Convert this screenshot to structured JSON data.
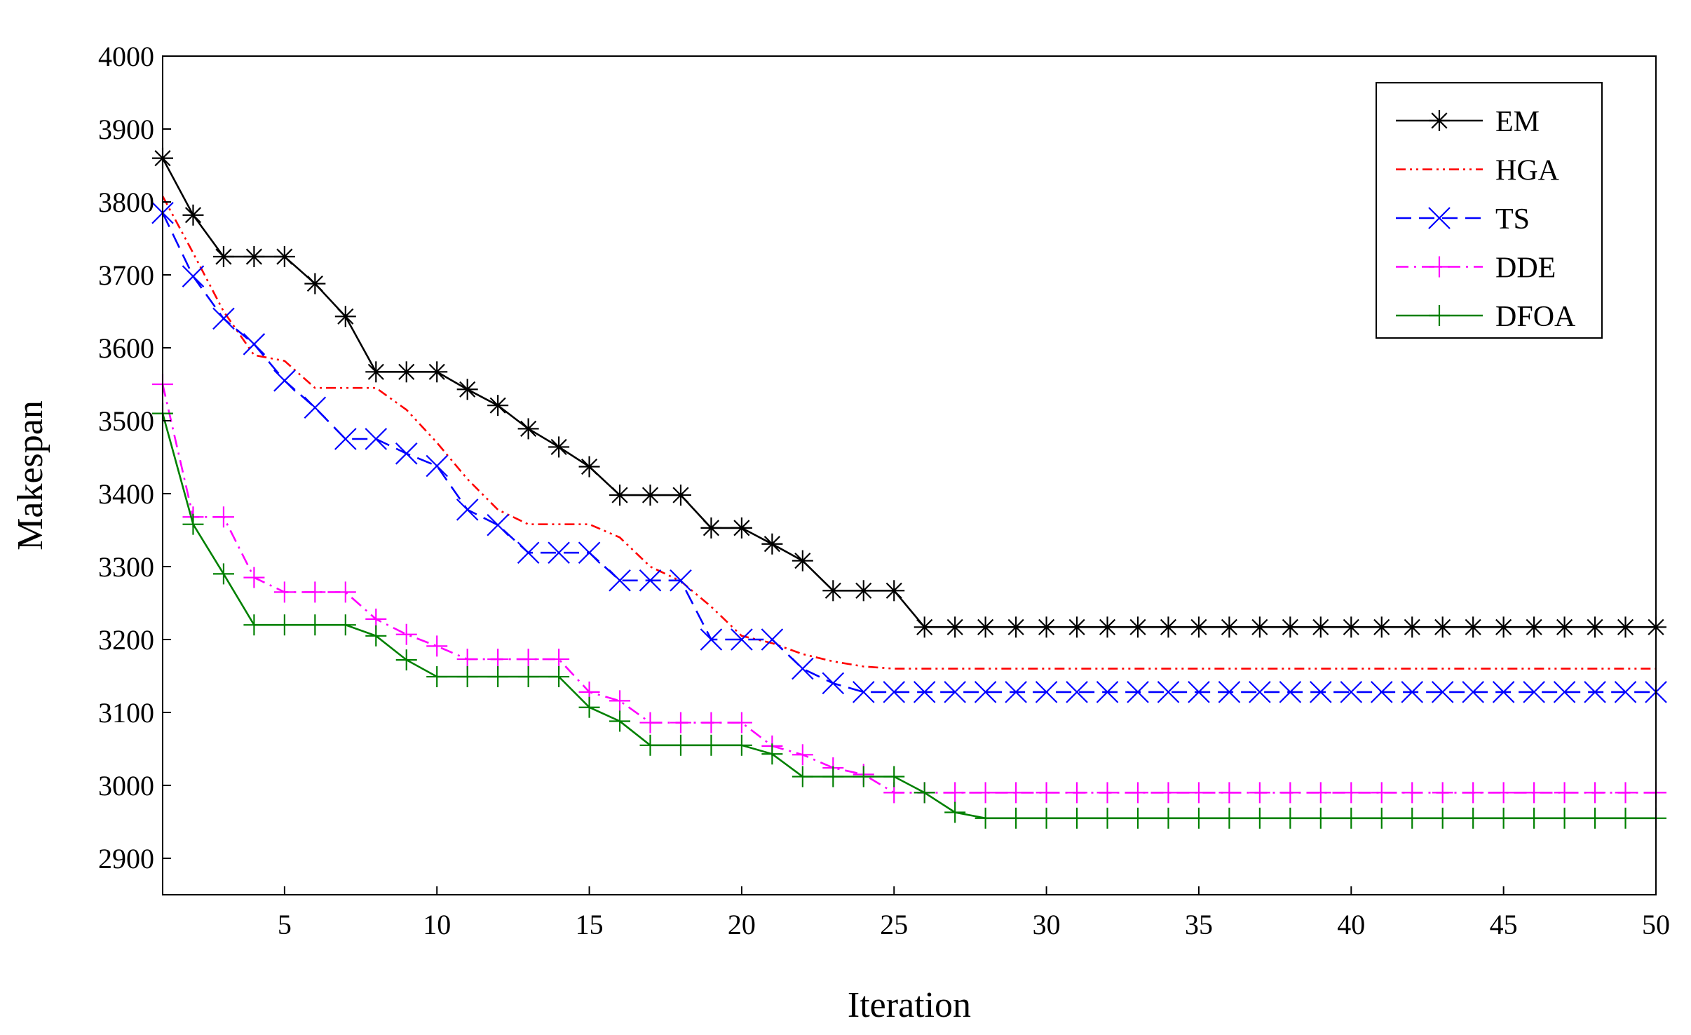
{
  "chart_data": {
    "type": "line",
    "title": "",
    "xlabel": "Iteration",
    "ylabel": "Makespan",
    "xlim": [
      1,
      50
    ],
    "ylim": [
      2850,
      4000
    ],
    "xticks": [
      5,
      10,
      15,
      20,
      25,
      30,
      35,
      40,
      45,
      50
    ],
    "yticks": [
      2900,
      3000,
      3100,
      3200,
      3300,
      3400,
      3500,
      3600,
      3700,
      3800,
      3900,
      4000
    ],
    "grid": false,
    "legend_position": "top-right",
    "x": [
      1,
      2,
      3,
      4,
      5,
      6,
      7,
      8,
      9,
      10,
      11,
      12,
      13,
      14,
      15,
      16,
      17,
      18,
      19,
      20,
      21,
      22,
      23,
      24,
      25,
      26,
      27,
      28,
      29,
      30,
      31,
      32,
      33,
      34,
      35,
      36,
      37,
      38,
      39,
      40,
      41,
      42,
      43,
      44,
      45,
      46,
      47,
      48,
      49,
      50
    ],
    "series": [
      {
        "name": "EM",
        "color": "#000000",
        "dash": "solid",
        "marker": "asterisk",
        "values": [
          3860,
          3782,
          3725,
          3725,
          3725,
          3688,
          3643,
          3567,
          3567,
          3567,
          3543,
          3521,
          3489,
          3464,
          3437,
          3398,
          3398,
          3398,
          3353,
          3353,
          3331,
          3308,
          3267,
          3267,
          3267,
          3217,
          3217,
          3217,
          3217,
          3217,
          3217,
          3217,
          3217,
          3217,
          3217,
          3217,
          3217,
          3217,
          3217,
          3217,
          3217,
          3217,
          3217,
          3217,
          3217,
          3217,
          3217,
          3217,
          3217,
          3217
        ]
      },
      {
        "name": "HGA",
        "color": "#ff0000",
        "dash": "dash-dot-dot",
        "marker": "none",
        "values": [
          3808,
          3730,
          3650,
          3590,
          3582,
          3545,
          3545,
          3545,
          3515,
          3470,
          3420,
          3378,
          3358,
          3358,
          3358,
          3340,
          3300,
          3280,
          3245,
          3205,
          3195,
          3180,
          3170,
          3163,
          3160,
          3160,
          3160,
          3160,
          3160,
          3160,
          3160,
          3160,
          3160,
          3160,
          3160,
          3160,
          3160,
          3160,
          3160,
          3160,
          3160,
          3160,
          3160,
          3160,
          3160,
          3160,
          3160,
          3160,
          3160,
          3160
        ]
      },
      {
        "name": "TS",
        "color": "#0000ff",
        "dash": "dashed",
        "marker": "x",
        "values": [
          3785,
          3698,
          3640,
          3605,
          3555,
          3518,
          3475,
          3475,
          3455,
          3438,
          3378,
          3357,
          3319,
          3319,
          3319,
          3281,
          3281,
          3281,
          3200,
          3200,
          3200,
          3160,
          3140,
          3128,
          3128,
          3128,
          3128,
          3128,
          3128,
          3128,
          3128,
          3128,
          3128,
          3128,
          3128,
          3128,
          3128,
          3128,
          3128,
          3128,
          3128,
          3128,
          3128,
          3128,
          3128,
          3128,
          3128,
          3128,
          3128,
          3128
        ]
      },
      {
        "name": "DDE",
        "color": "#ff00ff",
        "dash": "dash-dot",
        "marker": "plus",
        "values": [
          3550,
          3368,
          3368,
          3285,
          3265,
          3265,
          3265,
          3228,
          3207,
          3191,
          3173,
          3173,
          3173,
          3173,
          3128,
          3116,
          3086,
          3086,
          3086,
          3086,
          3054,
          3042,
          3024,
          3015,
          2990,
          2990,
          2990,
          2990,
          2990,
          2990,
          2990,
          2990,
          2990,
          2990,
          2990,
          2990,
          2990,
          2990,
          2990,
          2990,
          2990,
          2990,
          2990,
          2990,
          2990,
          2990,
          2990,
          2990,
          2990,
          2990
        ]
      },
      {
        "name": "DFOA",
        "color": "#008000",
        "dash": "solid",
        "marker": "plus",
        "values": [
          3510,
          3358,
          3290,
          3220,
          3220,
          3220,
          3220,
          3205,
          3172,
          3149,
          3149,
          3149,
          3149,
          3149,
          3107,
          3088,
          3055,
          3055,
          3055,
          3055,
          3043,
          3012,
          3012,
          3012,
          3012,
          2990,
          2963,
          2955,
          2955,
          2955,
          2955,
          2955,
          2955,
          2955,
          2955,
          2955,
          2955,
          2955,
          2955,
          2955,
          2955,
          2955,
          2955,
          2955,
          2955,
          2955,
          2955,
          2955,
          2955,
          2955
        ]
      }
    ]
  }
}
